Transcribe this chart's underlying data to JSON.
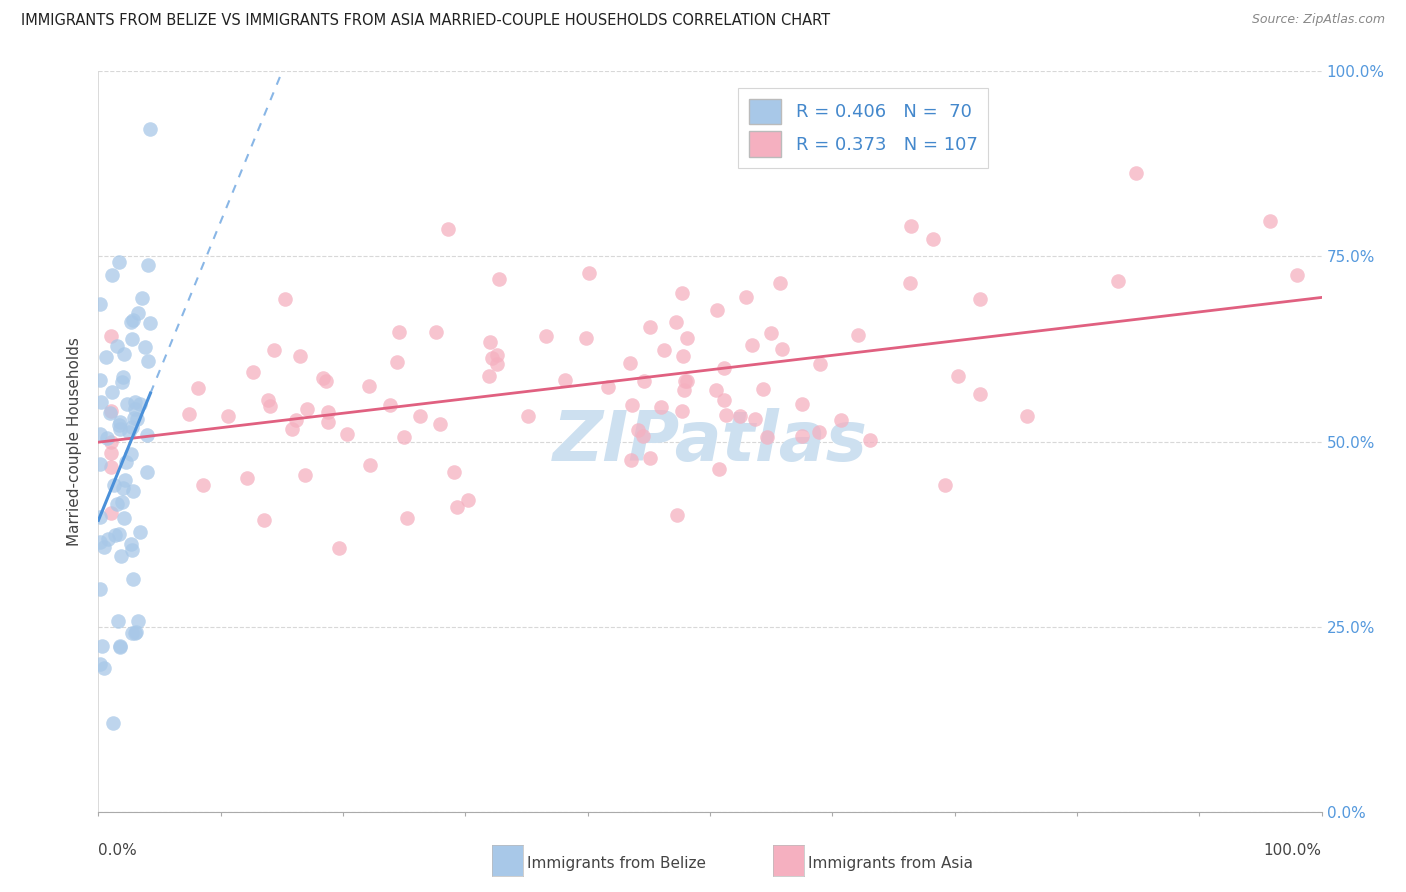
{
  "title": "IMMIGRANTS FROM BELIZE VS IMMIGRANTS FROM ASIA MARRIED-COUPLE HOUSEHOLDS CORRELATION CHART",
  "source": "Source: ZipAtlas.com",
  "ylabel": "Married-couple Households",
  "belize_R": 0.406,
  "belize_N": 70,
  "asia_R": 0.373,
  "asia_N": 107,
  "belize_color": "#a8c8e8",
  "belize_edge_color": "#7aaed4",
  "belize_line_color": "#4a90d9",
  "asia_color": "#f5b0c0",
  "asia_edge_color": "#e07090",
  "asia_line_color": "#e06080",
  "watermark": "ZIPatlas",
  "watermark_color": "#cde0f0",
  "grid_color": "#d8d8d8",
  "right_tick_color": "#5599dd",
  "title_color": "#222222",
  "source_color": "#888888",
  "label_color": "#444444",
  "legend_text_color": "#4488cc",
  "xlim": [
    0.0,
    1.0
  ],
  "ylim": [
    0.0,
    1.0
  ],
  "yticks": [
    0.0,
    0.25,
    0.5,
    0.75,
    1.0
  ],
  "ytick_labels_right": [
    "0.0%",
    "25.0%",
    "50.0%",
    "75.0%",
    "100.0%"
  ],
  "xtick_left_label": "0.0%",
  "xtick_right_label": "100.0%",
  "bottom_label_belize": "Immigrants from Belize",
  "bottom_label_asia": "Immigrants from Asia"
}
